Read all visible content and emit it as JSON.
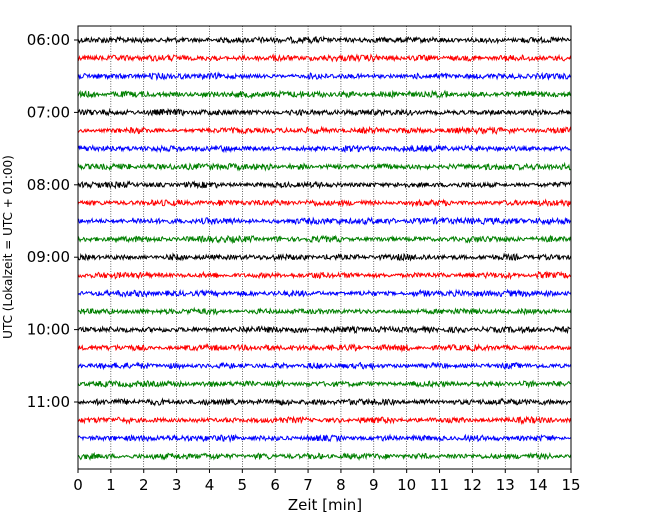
{
  "chart_data": {
    "type": "line",
    "title": "",
    "xlabel": "Zeit  [min]",
    "ylabel": "UTC (Lokalzeit = UTC + 01:00)",
    "xlim": [
      0,
      15
    ],
    "x_ticks": [
      "0",
      "1",
      "2",
      "3",
      "4",
      "5",
      "6",
      "7",
      "8",
      "9",
      "10",
      "11",
      "12",
      "13",
      "14",
      "15"
    ],
    "y_ticks": [
      "06:00",
      "07:00",
      "08:00",
      "09:00",
      "10:00",
      "11:00"
    ],
    "grid_x": true,
    "trace_start_times": [
      "06:00",
      "06:15",
      "06:30",
      "06:45",
      "07:00",
      "07:15",
      "07:30",
      "07:45",
      "08:00",
      "08:15",
      "08:30",
      "08:45",
      "09:00",
      "09:15",
      "09:30",
      "09:45",
      "10:00",
      "10:15",
      "10:30",
      "10:45",
      "11:00",
      "11:15",
      "11:30",
      "11:45"
    ],
    "trace_minutes_per_line": 15,
    "trace_colors": [
      "#000000",
      "#ff0000",
      "#0000ff",
      "#008000"
    ]
  }
}
